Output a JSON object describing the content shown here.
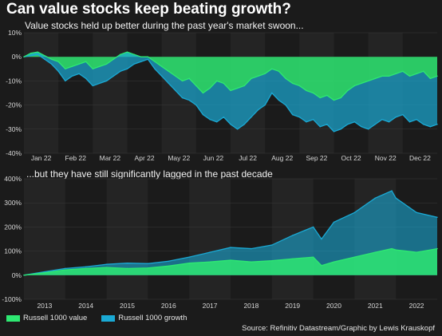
{
  "title": "Can value stocks keep beating growth?",
  "source": "Source: Refinitiv Datastream/Graphic by Lewis Krauskopf",
  "legend": [
    {
      "name": "Russell 1000 value",
      "color": "#2ee872"
    },
    {
      "name": "Russell 1000 growth",
      "color": "#1aa9d4"
    }
  ],
  "colors": {
    "background": "#1b1b1b",
    "band": "#242424",
    "value": "#2ee872",
    "growth": "#1aa9d4"
  },
  "chart_data": [
    {
      "type": "area",
      "subtitle": "Value stocks held up better during the past year's market swoon...",
      "ylim": [
        -40,
        10
      ],
      "yticks": [
        "10%",
        "0%",
        "-10%",
        "-20%",
        "-30%",
        "-40%"
      ],
      "yticks_values": [
        10,
        0,
        -10,
        -20,
        -30,
        -40
      ],
      "xticks": [
        "Jan 22",
        "Feb 22",
        "Mar 22",
        "Apr 22",
        "May 22",
        "Jun 22",
        "Jul 22",
        "Aug 22",
        "Sep 22",
        "Oct 22",
        "Nov 22",
        "Dec 22"
      ],
      "xtick_values": [
        0.5,
        1.5,
        2.5,
        3.5,
        4.5,
        5.5,
        6.5,
        7.5,
        8.5,
        9.5,
        10.5,
        11.5
      ],
      "xlim": [
        0,
        12
      ],
      "x": [
        0,
        0.2,
        0.4,
        0.6,
        0.8,
        1.0,
        1.2,
        1.4,
        1.6,
        1.8,
        2.0,
        2.2,
        2.4,
        2.6,
        2.8,
        3.0,
        3.2,
        3.4,
        3.6,
        3.8,
        4.0,
        4.2,
        4.4,
        4.6,
        4.8,
        5.0,
        5.2,
        5.4,
        5.6,
        5.8,
        6.0,
        6.2,
        6.4,
        6.6,
        6.8,
        7.0,
        7.2,
        7.4,
        7.6,
        7.8,
        8.0,
        8.2,
        8.4,
        8.6,
        8.8,
        9.0,
        9.2,
        9.4,
        9.6,
        9.8,
        10.0,
        10.2,
        10.4,
        10.6,
        10.8,
        11.0,
        11.2,
        11.4,
        11.6,
        11.8,
        12.0
      ],
      "series": [
        {
          "name": "Russell 1000 value",
          "values": [
            0,
            1.5,
            2,
            0.5,
            -1,
            -2,
            -5,
            -4,
            -3,
            -2,
            -5,
            -4,
            -3,
            -1,
            1,
            2,
            1,
            0,
            0,
            -2,
            -4,
            -6,
            -8,
            -10,
            -9,
            -12,
            -15,
            -13,
            -10,
            -11,
            -14,
            -13,
            -12,
            -9,
            -8,
            -7,
            -5,
            -6,
            -9,
            -11,
            -12,
            -14,
            -15,
            -17,
            -16,
            -18,
            -17,
            -14,
            -12,
            -11,
            -10,
            -9,
            -8,
            -8,
            -7,
            -6,
            -8,
            -7,
            -6,
            -9,
            -8
          ]
        },
        {
          "name": "Russell 1000 growth",
          "values": [
            0,
            0.5,
            1,
            -1,
            -3,
            -6,
            -10,
            -8,
            -7,
            -9,
            -12,
            -11,
            -10,
            -8,
            -6,
            -5,
            -3,
            -2,
            -1,
            -5,
            -8,
            -11,
            -14,
            -17,
            -18,
            -20,
            -24,
            -26,
            -27,
            -25,
            -28,
            -30,
            -28,
            -25,
            -22,
            -20,
            -15,
            -18,
            -20,
            -24,
            -25,
            -27,
            -26,
            -29,
            -28,
            -31,
            -30,
            -28,
            -27,
            -29,
            -30,
            -28,
            -26,
            -27,
            -25,
            -24,
            -27,
            -26,
            -28,
            -29,
            -28
          ]
        }
      ]
    },
    {
      "type": "area",
      "subtitle": "...but they have still significantly lagged in the past decade",
      "ylim": [
        -100,
        400
      ],
      "yticks": [
        "400%",
        "300%",
        "200%",
        "100%",
        "0%",
        "-100%"
      ],
      "yticks_values": [
        400,
        300,
        200,
        100,
        0,
        -100
      ],
      "xticks": [
        "2013",
        "2014",
        "2015",
        "2016",
        "2017",
        "2018",
        "2019",
        "2020",
        "2021",
        "2022"
      ],
      "xtick_values": [
        2013.5,
        2014.5,
        2015.5,
        2016.5,
        2017.5,
        2018.5,
        2019.5,
        2020.5,
        2021.5,
        2022.5
      ],
      "xlim": [
        2013,
        2023
      ],
      "x": [
        2013.0,
        2013.5,
        2014.0,
        2014.5,
        2015.0,
        2015.5,
        2016.0,
        2016.5,
        2017.0,
        2017.5,
        2018.0,
        2018.5,
        2019.0,
        2019.5,
        2020.0,
        2020.2,
        2020.5,
        2021.0,
        2021.5,
        2021.9,
        2022.0,
        2022.5,
        2023.0
      ],
      "series": [
        {
          "name": "Russell 1000 value",
          "values": [
            0,
            10,
            22,
            28,
            32,
            28,
            30,
            38,
            50,
            55,
            62,
            55,
            60,
            68,
            75,
            40,
            55,
            75,
            95,
            110,
            105,
            95,
            110
          ]
        },
        {
          "name": "Russell 1000 growth",
          "values": [
            0,
            14,
            28,
            35,
            45,
            50,
            48,
            58,
            75,
            95,
            115,
            110,
            125,
            165,
            200,
            150,
            220,
            260,
            320,
            350,
            320,
            260,
            240
          ]
        }
      ]
    }
  ]
}
